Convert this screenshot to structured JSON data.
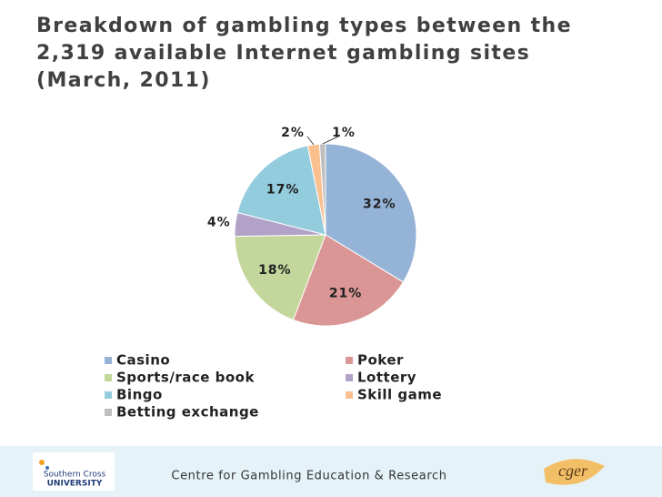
{
  "chart_data": {
    "type": "pie",
    "title": "Breakdown of gambling types between the 2,319 available Internet gambling sites (March, 2011)",
    "categories": [
      "Casino",
      "Poker",
      "Sports/race book",
      "Lottery",
      "Bingo",
      "Skill game",
      "Betting exchange"
    ],
    "values": [
      32,
      21,
      18,
      4,
      17,
      2,
      1
    ],
    "value_labels": [
      "32%",
      "21%",
      "18%",
      "4%",
      "17%",
      "2%",
      "1%"
    ],
    "colors": [
      "#95b3d7",
      "#d99694",
      "#c3d69b",
      "#b3a2c7",
      "#93cddd",
      "#fac090",
      "#bfbfbf"
    ],
    "legend": "bottom"
  },
  "footer": {
    "text": "Centre for Gambling Education & Research",
    "logo_left": [
      "Southern Cross",
      "UNIVERSITY"
    ],
    "logo_right": "cger"
  }
}
